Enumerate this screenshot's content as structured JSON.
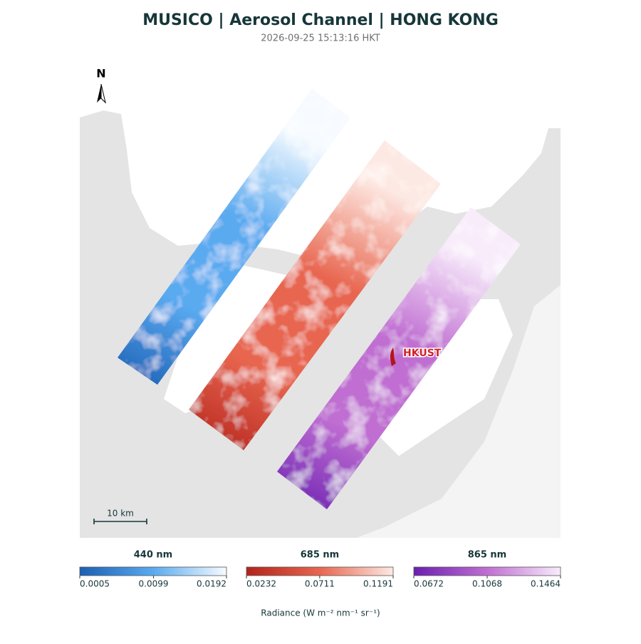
{
  "header": {
    "title": "MUSICO | Aerosol Channel | HONG KONG",
    "subtitle": "2026-09-25 15:13:16 HKT"
  },
  "map": {
    "north": "N",
    "scale_bar": "10 km",
    "marker": "HKUST"
  },
  "colorbars": [
    {
      "label": "440 nm",
      "lim": [
        0.0005,
        0.0192
      ],
      "ticks": [
        0.0005,
        0.0099,
        0.0192
      ],
      "colors": [
        "#1a5fb4",
        "#5aaaf0",
        "#f7fbff"
      ]
    },
    {
      "label": "685 nm",
      "lim": [
        0.0232,
        0.1191
      ],
      "ticks": [
        0.0232,
        0.0711,
        0.1191
      ],
      "colors": [
        "#b3221a",
        "#e8664f",
        "#fde9e3"
      ]
    },
    {
      "label": "865 nm",
      "lim": [
        0.0672,
        0.1464
      ],
      "ticks": [
        0.0672,
        0.1068,
        0.1464
      ],
      "colors": [
        "#6a1fb0",
        "#c06ed2",
        "#f8ecfb"
      ]
    }
  ],
  "colorbar_label": "Radiance (W m⁻² nm⁻¹ sr⁻¹)"
}
